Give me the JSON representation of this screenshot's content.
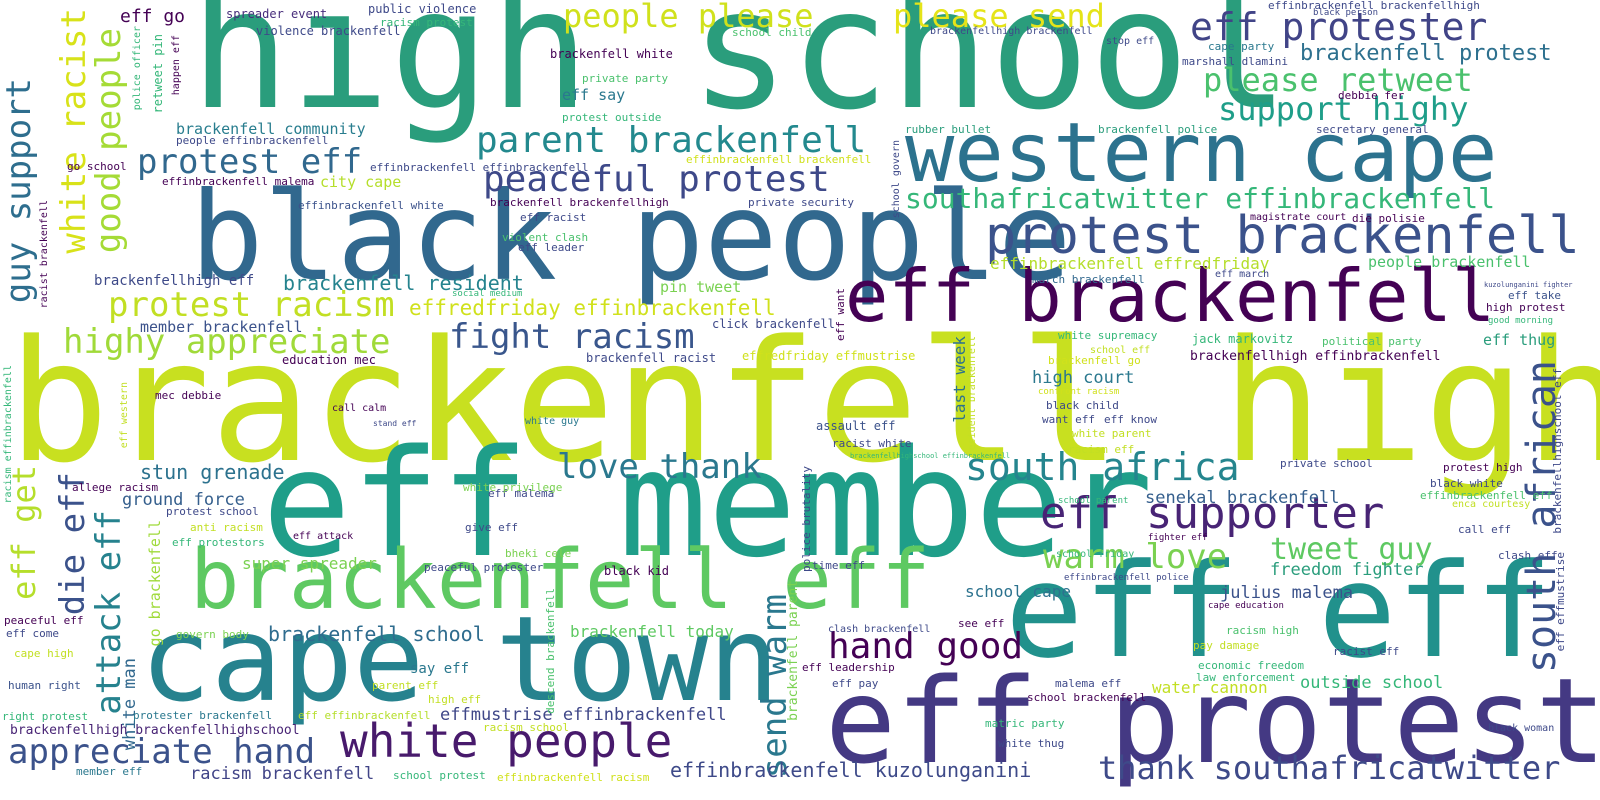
{
  "phrases": [
    {
      "text": "brackenfell high",
      "color": "#c8e020"
    },
    {
      "text": "high school",
      "color": "#2a9d7c"
    },
    {
      "text": "eff member",
      "color": "#1f9e89"
    },
    {
      "text": "black people",
      "color": "#31688e"
    },
    {
      "text": "cape town",
      "color": "#26828e"
    },
    {
      "text": "eff eff",
      "color": "#21918c"
    },
    {
      "text": "eff protest",
      "color": "#443983"
    },
    {
      "text": "western cape",
      "color": "#2c728e"
    },
    {
      "text": "brackenfell eff",
      "color": "#5ec962"
    },
    {
      "text": "eff brackenfell",
      "color": "#440154"
    },
    {
      "text": "protest brackenfell",
      "color": "#3b528b"
    },
    {
      "text": "white people",
      "color": "#481a6c"
    },
    {
      "text": "eff supporter",
      "color": "#482475"
    },
    {
      "text": "south africa",
      "color": "#25858e"
    },
    {
      "text": "eff protester",
      "color": "#414487"
    },
    {
      "text": "people please",
      "color": "#d0e11c"
    },
    {
      "text": "please send",
      "color": "#e5e419"
    },
    {
      "text": "peaceful protest",
      "color": "#3e4989"
    },
    {
      "text": "parent brackenfell",
      "color": "#23898e"
    },
    {
      "text": "protest eff",
      "color": "#31688e"
    },
    {
      "text": "love thank",
      "color": "#2a788e"
    },
    {
      "text": "hand good",
      "color": "#440154"
    },
    {
      "text": "appreciate hand",
      "color": "#3b528b"
    },
    {
      "text": "thank southafricatwitter",
      "color": "#3e4a89"
    },
    {
      "text": "highy appreciate",
      "color": "#a0da39"
    },
    {
      "text": "protest racism",
      "color": "#c2df23"
    },
    {
      "text": "fight racism",
      "color": "#39568c"
    },
    {
      "text": "warm love",
      "color": "#7ad151"
    },
    {
      "text": "tweet guy",
      "color": "#5ec962"
    },
    {
      "text": "please retweet",
      "color": "#4ac16d"
    },
    {
      "text": "support highy",
      "color": "#1f9e89"
    },
    {
      "text": "southafricatwitter effinbrackenfell",
      "color": "#35b779"
    },
    {
      "text": "brackenfell protest",
      "color": "#2d708e"
    },
    {
      "text": "white racist",
      "color": "#d8e219"
    },
    {
      "text": "good people",
      "color": "#a5db36"
    },
    {
      "text": "guy support",
      "color": "#2e6e8e"
    },
    {
      "text": "die eff",
      "color": "#3b528b"
    },
    {
      "text": "attack eff",
      "color": "#26828e"
    },
    {
      "text": "eff get",
      "color": "#b5de2b"
    },
    {
      "text": "send warm",
      "color": "#2a788e"
    },
    {
      "text": "south african",
      "color": "#3b528b"
    },
    {
      "text": "brackenfell school",
      "color": "#2f6c8e"
    },
    {
      "text": "brackenfell resident",
      "color": "#25838e"
    },
    {
      "text": "effinbrackenfell kuzolunganini",
      "color": "#3e4a89"
    },
    {
      "text": "racism brackenfell",
      "color": "#414487"
    },
    {
      "text": "stun grenade",
      "color": "#2c728e"
    },
    {
      "text": "ground force",
      "color": "#355f8d"
    },
    {
      "text": "effmustrise effinbrackenfell",
      "color": "#3f4788"
    },
    {
      "text": "effredfriday effinbrackenfell",
      "color": "#d0e11c"
    },
    {
      "text": "brackenfell community",
      "color": "#287d8e"
    },
    {
      "text": "effinbrackenfell effredfriday",
      "color": "#b5de2b"
    },
    {
      "text": "julius malema",
      "color": "#3b528b"
    },
    {
      "text": "freedom fighter",
      "color": "#2a9d7c"
    },
    {
      "text": "school cape",
      "color": "#2c728e"
    },
    {
      "text": "outside school",
      "color": "#35b779"
    },
    {
      "text": "water cannon",
      "color": "#c2df23"
    },
    {
      "text": "senekal brackenfell",
      "color": "#355f8d"
    },
    {
      "text": "high court",
      "color": "#2a788e"
    },
    {
      "text": "member brackenfell",
      "color": "#3b528b"
    },
    {
      "text": "super spreader",
      "color": "#7ad151"
    },
    {
      "text": "brackenfell today",
      "color": "#5ec962"
    },
    {
      "text": "white man",
      "color": "#31688e"
    },
    {
      "text": "go brackenfell",
      "color": "#9fda3a"
    },
    {
      "text": "last week",
      "color": "#2c728e"
    },
    {
      "text": "people brackenfell",
      "color": "#4ac16d"
    },
    {
      "text": "brackenfellhigh effinbrackenfell",
      "color": "#440154"
    },
    {
      "text": "city cape",
      "color": "#b5de2b"
    },
    {
      "text": "brackenfellhigh brackenfellhighschool",
      "color": "#482475"
    },
    {
      "text": "brackenfellhigh eff",
      "color": "#3e4a89"
    },
    {
      "text": "brackenfell white",
      "color": "#440154"
    },
    {
      "text": "violence brackenfell",
      "color": "#3e4989"
    },
    {
      "text": "public violence",
      "color": "#3e4989"
    },
    {
      "text": "spreader event",
      "color": "#472d7b"
    },
    {
      "text": "eff go",
      "color": "#440154"
    },
    {
      "text": "eff say",
      "color": "#2a788e"
    },
    {
      "text": "pin tweet",
      "color": "#7ad151"
    },
    {
      "text": "mec debbie",
      "color": "#440154"
    },
    {
      "text": "education mec",
      "color": "#440154"
    },
    {
      "text": "click brackenfell",
      "color": "#3e4989"
    },
    {
      "text": "brackenfell racist",
      "color": "#3e4989"
    },
    {
      "text": "effredfriday effmustrise",
      "color": "#d0e11c"
    },
    {
      "text": "eff thug",
      "color": "#2a9d7c"
    },
    {
      "text": "march brackenfell",
      "color": "#31688e"
    },
    {
      "text": "jack markovitz",
      "color": "#35b779"
    },
    {
      "text": "political party",
      "color": "#4ac16d"
    },
    {
      "text": "high protest",
      "color": "#440154"
    },
    {
      "text": "good morning",
      "color": "#35b779"
    },
    {
      "text": "eff take",
      "color": "#3b528b"
    },
    {
      "text": "brackenfell police",
      "color": "#2a9d7c"
    },
    {
      "text": "secretary general",
      "color": "#3e4989"
    },
    {
      "text": "rubber bullet",
      "color": "#2a9d7c"
    },
    {
      "text": "marshall dlamini",
      "color": "#3e4989"
    },
    {
      "text": "debbie fer",
      "color": "#440154"
    },
    {
      "text": "cape party",
      "color": "#2a788e"
    },
    {
      "text": "stop eff",
      "color": "#3e4989"
    },
    {
      "text": "black person",
      "color": "#3e4989"
    },
    {
      "text": "effinbrackenfell brackenfellhigh",
      "color": "#3e4989"
    },
    {
      "text": "brackenfellhigh brackenfell",
      "color": "#3e4989"
    },
    {
      "text": "school child",
      "color": "#4ac16d"
    },
    {
      "text": "racism protest",
      "color": "#35b779"
    },
    {
      "text": "private party",
      "color": "#4ac16d"
    },
    {
      "text": "protest outside",
      "color": "#35b779"
    },
    {
      "text": "effinbrackenfell brackenfell",
      "color": "#d0e11c"
    },
    {
      "text": "effinbrackenfell effinbrackenfell",
      "color": "#3e4989"
    },
    {
      "text": "effinbrackenfell malema",
      "color": "#440154"
    },
    {
      "text": "effinbrackenfell white",
      "color": "#3b528b"
    },
    {
      "text": "brackenfell brackenfellhigh",
      "color": "#440154"
    },
    {
      "text": "eff racist",
      "color": "#3e4989"
    },
    {
      "text": "eff leader",
      "color": "#3e4989"
    },
    {
      "text": "violent clash",
      "color": "#4ac16d"
    },
    {
      "text": "private security",
      "color": "#3e4989"
    },
    {
      "text": "social medium",
      "color": "#35b779"
    },
    {
      "text": "people effinbrackenfell",
      "color": "#3e4989"
    },
    {
      "text": "go school",
      "color": "#440154"
    },
    {
      "text": "call calm",
      "color": "#440154"
    },
    {
      "text": "stand eff",
      "color": "#3e4989"
    },
    {
      "text": "white guy",
      "color": "#2a788e"
    },
    {
      "text": "assault eff",
      "color": "#3b528b"
    },
    {
      "text": "allege racism",
      "color": "#440154"
    },
    {
      "text": "protest school",
      "color": "#3e4989"
    },
    {
      "text": "anti racism",
      "color": "#c2df23"
    },
    {
      "text": "eff protestors",
      "color": "#35b779"
    },
    {
      "text": "eff attack",
      "color": "#440154"
    },
    {
      "text": "eff malema",
      "color": "#3e4989"
    },
    {
      "text": "white privilege",
      "color": "#7ad151"
    },
    {
      "text": "give eff",
      "color": "#3e4989"
    },
    {
      "text": "bheki cele",
      "color": "#7ad151"
    },
    {
      "text": "peaceful protester",
      "color": "#3e4989"
    },
    {
      "text": "black kid",
      "color": "#440154"
    },
    {
      "text": "racist white",
      "color": "#3e4989"
    },
    {
      "text": "govern body",
      "color": "#7ad151"
    },
    {
      "text": "human right",
      "color": "#3b528b"
    },
    {
      "text": "cape high",
      "color": "#c2df23"
    },
    {
      "text": "eff come",
      "color": "#3e4989"
    },
    {
      "text": "peaceful eff",
      "color": "#440154"
    },
    {
      "text": "right protest",
      "color": "#35b779"
    },
    {
      "text": "protester brackenfell",
      "color": "#2a788e"
    },
    {
      "text": "eff effinbrackenfell",
      "color": "#b5de2b"
    },
    {
      "text": "racism school",
      "color": "#c2df23"
    },
    {
      "text": "member eff",
      "color": "#2a788e"
    },
    {
      "text": "school protest",
      "color": "#35b779"
    },
    {
      "text": "effinbrackenfell racism",
      "color": "#d0e11c"
    },
    {
      "text": "say eff",
      "color": "#2a788e"
    },
    {
      "text": "high eff",
      "color": "#c2df23"
    },
    {
      "text": "parent eff",
      "color": "#c2df23"
    },
    {
      "text": "see eff",
      "color": "#440154"
    },
    {
      "text": "clash brackenfell",
      "color": "#3e4989"
    },
    {
      "text": "eff leadership",
      "color": "#440154"
    },
    {
      "text": "eff pay",
      "color": "#3e4989"
    },
    {
      "text": "time eff",
      "color": "#3e4989"
    },
    {
      "text": "malema eff",
      "color": "#3e4989"
    },
    {
      "text": "school brackenfell",
      "color": "#440154"
    },
    {
      "text": "matric party",
      "color": "#35b779"
    },
    {
      "text": "white thug",
      "color": "#3e4989"
    },
    {
      "text": "black woman",
      "color": "#3e4989"
    },
    {
      "text": "pay damage",
      "color": "#c2df23"
    },
    {
      "text": "racism high",
      "color": "#4ac16d"
    },
    {
      "text": "economic freedom",
      "color": "#35b779"
    },
    {
      "text": "law enforcement",
      "color": "#35b779"
    },
    {
      "text": "racist eff",
      "color": "#3e4989"
    },
    {
      "text": "cape education",
      "color": "#440154"
    },
    {
      "text": "school friday",
      "color": "#35b779"
    },
    {
      "text": "fighter eff",
      "color": "#440154"
    },
    {
      "text": "call eff",
      "color": "#3e4989"
    },
    {
      "text": "clash eff",
      "color": "#3e4989"
    },
    {
      "text": "enca courtesy",
      "color": "#c2df23"
    },
    {
      "text": "black white",
      "color": "#3e4989"
    },
    {
      "text": "effinbrackenfell eff",
      "color": "#4ac16d"
    },
    {
      "text": "protest high",
      "color": "#440154"
    },
    {
      "text": "private school",
      "color": "#3e4989"
    },
    {
      "text": "school parent",
      "color": "#35b779"
    },
    {
      "text": "effinbrackenfell police",
      "color": "#3e4989"
    },
    {
      "text": "black child",
      "color": "#3e4989"
    },
    {
      "text": "want eff",
      "color": "#3e4989"
    },
    {
      "text": "eff know",
      "color": "#3e4989"
    },
    {
      "text": "white parent",
      "color": "#c2df23"
    },
    {
      "text": "racism eff",
      "color": "#c2df23"
    },
    {
      "text": "confront racism",
      "color": "#d0e11c"
    },
    {
      "text": "school eff",
      "color": "#c2df23"
    },
    {
      "text": "brackenfell go",
      "color": "#d0e11c"
    },
    {
      "text": "white supremacy",
      "color": "#35b779"
    },
    {
      "text": "magistrate court",
      "color": "#440154"
    },
    {
      "text": "die polisie",
      "color": "#440154"
    },
    {
      "text": "eff march",
      "color": "#3e4989"
    },
    {
      "text": "kuzolunganini fighter",
      "color": "#3e4989"
    },
    {
      "text": "police officer",
      "color": "#35b779"
    },
    {
      "text": "retweet pin",
      "color": "#35b779"
    },
    {
      "text": "happen eff",
      "color": "#440154"
    },
    {
      "text": "racist brackenfell",
      "color": "#440154"
    },
    {
      "text": "racism effinbrackenfell",
      "color": "#35b779"
    },
    {
      "text": "eff western",
      "color": "#c2df23"
    },
    {
      "text": "school govern",
      "color": "#3e4989"
    },
    {
      "text": "eff want",
      "color": "#440154"
    },
    {
      "text": "resident brackenfell",
      "color": "#c2df23"
    },
    {
      "text": "police brutality",
      "color": "#3e4989"
    },
    {
      "text": "brackenfell parent",
      "color": "#7ad151"
    },
    {
      "text": "descend brackenfell",
      "color": "#4ac16d"
    },
    {
      "text": "brackenfellhighschool effinbrackenfell",
      "color": "#35b779"
    },
    {
      "text": "brackenfellhighschool eff",
      "color": "#3e4989"
    },
    {
      "text": "eff effmustrise",
      "color": "#3e4989"
    }
  ]
}
